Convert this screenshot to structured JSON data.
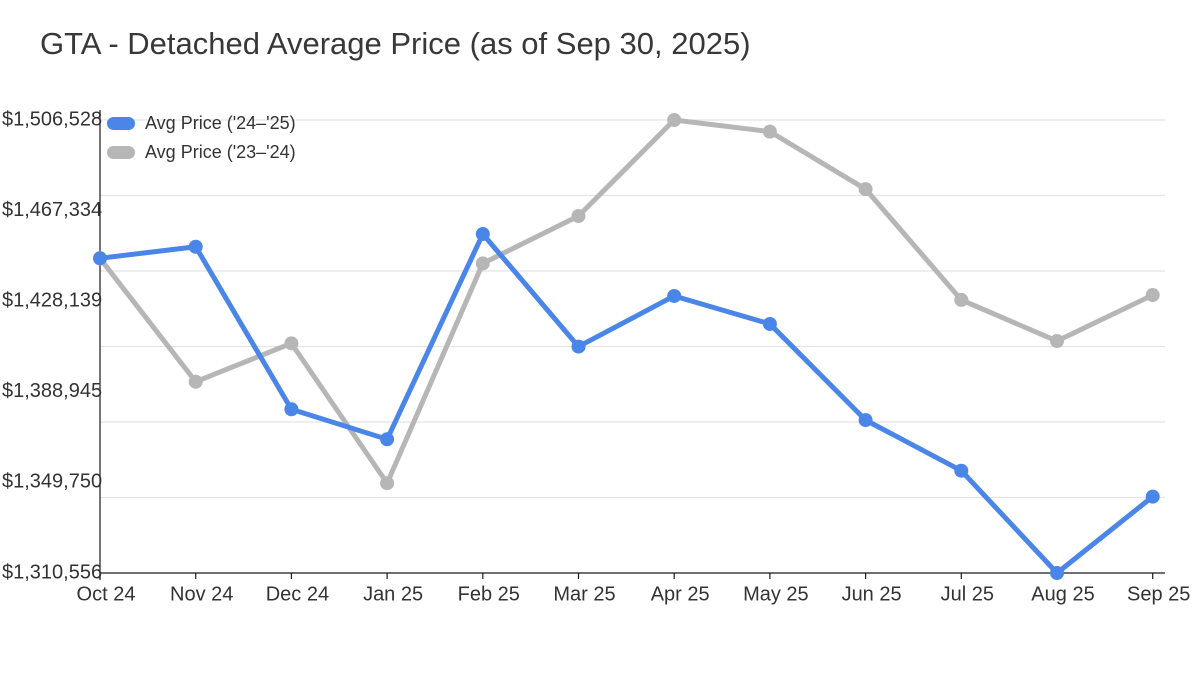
{
  "chart_data": {
    "type": "line",
    "title": "GTA - Detached Average Price (as of Sep 30, 2025)",
    "categories": [
      "Oct 24",
      "Nov 24",
      "Dec 24",
      "Jan 25",
      "Feb 25",
      "Mar 25",
      "Apr 25",
      "May 25",
      "Jun 25",
      "Jul 25",
      "Aug 25",
      "Sep 25"
    ],
    "series": [
      {
        "name": "Avg Price ('24–'25)",
        "color": "#4a86e8",
        "values": [
          1446700,
          1451700,
          1381400,
          1368400,
          1457200,
          1408500,
          1430400,
          1418300,
          1376700,
          1354800,
          1310556,
          1343600
        ]
      },
      {
        "name": "Avg Price ('23–'24)",
        "color": "#b6b6b6",
        "values": [
          1446700,
          1393300,
          1409900,
          1349400,
          1444500,
          1465000,
          1506528,
          1501500,
          1476600,
          1428700,
          1410900,
          1430800
        ]
      }
    ],
    "y_ticks": [
      "$1,506,528",
      "$1,467,334",
      "$1,428,139",
      "$1,388,945",
      "$1,349,750",
      "$1,310,556"
    ],
    "ylim": [
      1310556,
      1506528
    ],
    "grid": "horizontal",
    "legend_position": "top-left",
    "colors": {
      "gridline": "#e4e4e4",
      "axis": "#1a1a1a",
      "tick_text": "#333333"
    }
  }
}
